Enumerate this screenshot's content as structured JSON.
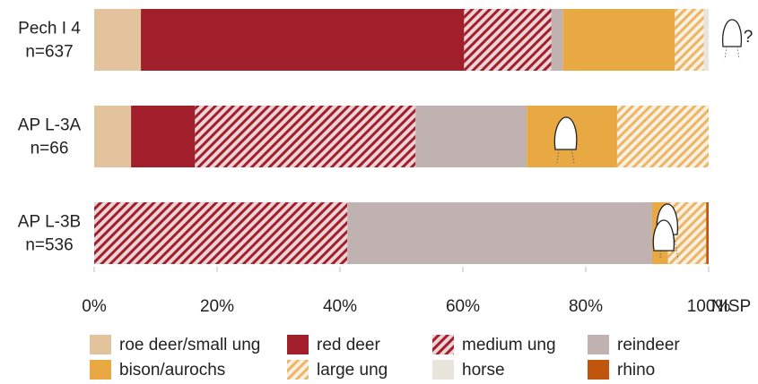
{
  "chart_data": {
    "type": "stacked-bar-horizontal",
    "categories": [
      "Pech I 4",
      "AP L-3A",
      "AP L-3B"
    ],
    "sample_sizes": [
      "n=637",
      "n=66",
      "n=536"
    ],
    "series": [
      {
        "name": "roe deer/small ung",
        "color": "#e2c39d",
        "values": [
          7.6,
          6.0,
          0
        ]
      },
      {
        "name": "red deer",
        "color": "#a01f2b",
        "values": [
          52.6,
          10.4,
          0
        ]
      },
      {
        "name": "medium ung",
        "color": "#a01f2b",
        "background": "#ecd3d5",
        "hatch": true,
        "values": [
          14.2,
          35.9,
          41.2
        ]
      },
      {
        "name": "reindeer",
        "color": "#c1b2b2",
        "values": [
          1.9,
          18.1,
          49.6
        ]
      },
      {
        "name": "bison/aurochs",
        "color": "#e8a842",
        "values": [
          18.2,
          14.7,
          2.6
        ]
      },
      {
        "name": "large ung",
        "color": "#eab567",
        "background": "#fbf0df",
        "hatch": true,
        "values": [
          4.7,
          14.9,
          6.2
        ]
      },
      {
        "name": "horse",
        "color": "#e8e6dc",
        "values": [
          0.8,
          0,
          0
        ]
      },
      {
        "name": "rhino",
        "color": "#c0560e",
        "values": [
          0,
          0,
          0.4
        ]
      }
    ],
    "x_label": "NISP",
    "annotations": [
      "?"
    ],
    "xlim": [
      0,
      100
    ],
    "xticks": [
      {
        "value": 0,
        "label": "0%"
      },
      {
        "value": 20,
        "label": "20%"
      },
      {
        "value": 40,
        "label": "40%"
      },
      {
        "value": 60,
        "label": "60%"
      },
      {
        "value": 80,
        "label": "80%"
      },
      {
        "value": 100,
        "label": "100%"
      }
    ]
  }
}
